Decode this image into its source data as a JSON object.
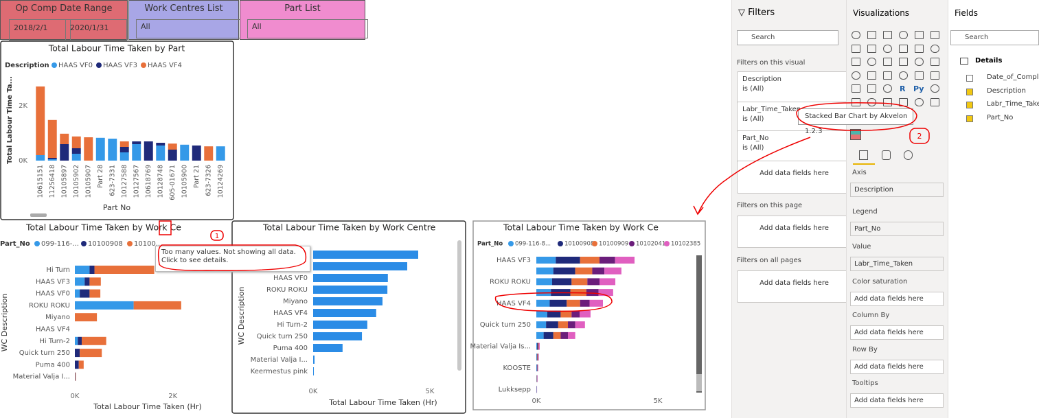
{
  "slicers": [
    {
      "title": "Op Comp Date Range",
      "values": [
        "2018/2/1",
        "2020/1/31"
      ]
    },
    {
      "title": "Work Centres List",
      "values": [
        "All"
      ]
    },
    {
      "title": "Part List",
      "values": [
        "All"
      ]
    }
  ],
  "chart_data": [
    {
      "type": "bar",
      "title": "Total Labour Time Taken by Part",
      "legend_title": "Description",
      "x_label": "Part No",
      "y_label": "Total Labour Time Ta...",
      "categories": [
        "10615151",
        "11256418",
        "10105897",
        "10105902",
        "10105907",
        "Part 28",
        "623-7331",
        "10127588",
        "10127567",
        "10618769",
        "10128748",
        "605-01671",
        "10105900",
        "Part 21",
        "623-7326",
        "10124269"
      ],
      "series": [
        {
          "name": "HAAS VF0",
          "color": "#3599e8",
          "values": [
            200,
            50,
            0,
            250,
            0,
            830,
            800,
            300,
            600,
            0,
            550,
            0,
            580,
            0,
            0,
            520
          ]
        },
        {
          "name": "HAAS VF3",
          "color": "#1f2a7a",
          "values": [
            0,
            50,
            600,
            200,
            0,
            0,
            0,
            200,
            100,
            700,
            100,
            400,
            0,
            550,
            0,
            0
          ]
        },
        {
          "name": "HAAS VF4",
          "color": "#e8703a",
          "values": [
            2500,
            1380,
            380,
            430,
            850,
            0,
            0,
            200,
            0,
            0,
            0,
            220,
            0,
            0,
            520,
            0
          ]
        }
      ],
      "ylim": [
        0,
        2800
      ],
      "yticks": [
        {
          "value": 0,
          "label": "0K"
        },
        {
          "value": 2000,
          "label": "2K"
        }
      ],
      "grid": false
    },
    {
      "type": "barh",
      "title": "Total Labour Time Taken by Work Ce",
      "legend_title": "Part_No",
      "x_label": "Total Labour Time Taken (Hr)",
      "y_label": "WC Description",
      "categories": [
        "Hi Turn",
        "HAAS VF3",
        "HAAS VF0",
        "ROKU ROKU",
        "Miyano",
        "HAAS VF4",
        "Hi Turn-2",
        "Quick turn 250",
        "Puma 400",
        "Material Valja I..."
      ],
      "series": [
        {
          "name": "099-116-...",
          "color": "#3599e8",
          "values": [
            300,
            200,
            100,
            1200,
            0,
            0,
            60,
            0,
            0,
            0
          ]
        },
        {
          "name": "10100908",
          "color": "#1f2a7a",
          "values": [
            100,
            100,
            200,
            0,
            0,
            0,
            80,
            100,
            80,
            10
          ]
        },
        {
          "name": "10100...",
          "color": "#e8703a",
          "values": [
            1220,
            230,
            220,
            970,
            450,
            0,
            500,
            450,
            100,
            10
          ]
        }
      ],
      "xlim": [
        0,
        2200
      ],
      "xticks": [
        {
          "value": 0,
          "label": "0K"
        },
        {
          "value": 2000,
          "label": "2K"
        }
      ],
      "grid": false
    },
    {
      "type": "barh",
      "title": "Total Labour Time Taken by Work Centre",
      "x_label": "Total Labour Time Taken (Hr)",
      "y_label": "WC Description",
      "categories": [
        null,
        null,
        "HAAS VF0",
        "ROKU ROKU",
        "Miyano",
        "HAAS VF4",
        "Hi Turn-2",
        "Quick turn 250",
        "Puma 400",
        "Material Valja I...",
        "Keermestus pink"
      ],
      "values": [
        4500,
        4030,
        3200,
        3180,
        2970,
        2700,
        2320,
        2090,
        1260,
        60,
        30
      ],
      "color": "#2b8ce6",
      "xlim": [
        0,
        5000
      ],
      "xticks": [
        {
          "value": 0,
          "label": "0K"
        },
        {
          "value": 5000,
          "label": "5K"
        }
      ],
      "grid": false
    },
    {
      "type": "barh",
      "title": "Total Labour Time Taken by Work Ce",
      "legend_title": "Part_No",
      "categories": [
        "HAAS VF3",
        null,
        "ROKU ROKU",
        null,
        "HAAS VF4",
        null,
        "Quick turn 250",
        null,
        "Material Valja Is...",
        null,
        "KOOSTE",
        null,
        "Lukksepp"
      ],
      "series": [
        {
          "name": "099-116-8...",
          "color": "#3599e8",
          "values": [
            800,
            700,
            650,
            600,
            550,
            450,
            400,
            300,
            30,
            20,
            20,
            10,
            10
          ]
        },
        {
          "name": "10100908",
          "color": "#1f2a7a",
          "values": [
            1000,
            900,
            800,
            800,
            700,
            550,
            500,
            400,
            30,
            20,
            20,
            10,
            5
          ]
        },
        {
          "name": "10100909",
          "color": "#e8703a",
          "values": [
            800,
            700,
            650,
            660,
            550,
            450,
            400,
            300,
            30,
            20,
            10,
            10,
            5
          ]
        },
        {
          "name": "10102041",
          "color": "#6b1d7b",
          "values": [
            640,
            500,
            500,
            500,
            390,
            330,
            300,
            300,
            20,
            20,
            10,
            10,
            5
          ]
        },
        {
          "name": "10102385",
          "color": "#e05fc0",
          "values": [
            800,
            700,
            650,
            600,
            550,
            450,
            400,
            300,
            30,
            20,
            20,
            10,
            5
          ]
        }
      ],
      "xlim": [
        0,
        5000
      ],
      "xticks": [
        {
          "value": 0,
          "label": "0K"
        },
        {
          "value": 5000,
          "label": "5K"
        }
      ],
      "grid": false
    }
  ],
  "tooltip": "Too many values. Not showing all data. Click to see details.",
  "annotations": [
    "1",
    "2"
  ],
  "filters_pane": {
    "title": "Filters",
    "search": "Search",
    "sections": [
      {
        "title": "Filters on this visual",
        "cards": [
          {
            "field": "Description",
            "state": "is (All)"
          },
          {
            "field": "Labr_Time_Taken",
            "state": "is (All)"
          },
          {
            "field": "Part_No",
            "state": "is (All)"
          }
        ],
        "add": "Add data fields here"
      },
      {
        "title": "Filters on this page",
        "add": "Add data fields here"
      },
      {
        "title": "Filters on all pages",
        "add": "Add data fields here"
      }
    ]
  },
  "visualizations_pane": {
    "title": "Visualizations",
    "icon_labels": [
      "R",
      "Py"
    ],
    "tooltip": "Stacked Bar Chart by Akvelon 1.2.3",
    "wells": [
      {
        "label": "Axis",
        "value": "Description"
      },
      {
        "label": "Legend",
        "value": "Part_No"
      },
      {
        "label": "Value",
        "value": "Labr_Time_Taken"
      },
      {
        "label": "Color saturation",
        "value": "Add data fields here"
      },
      {
        "label": "Column By",
        "value": "Add data fields here"
      },
      {
        "label": "Row By",
        "value": "Add data fields here"
      },
      {
        "label": "Tooltips",
        "value": "Add data fields here"
      }
    ]
  },
  "fields_pane": {
    "title": "Fields",
    "search": "Search",
    "table": "Details",
    "fields": [
      "Date_of_Compl...",
      "Description",
      "Labr_Time_Taken",
      "Part_No"
    ]
  }
}
